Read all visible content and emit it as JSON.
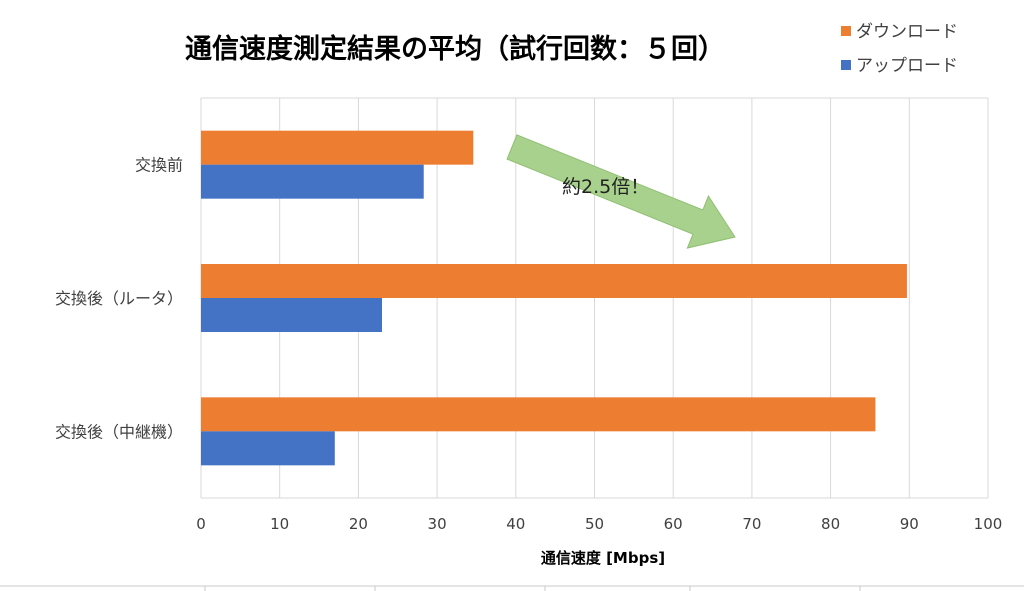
{
  "chart_data": {
    "type": "bar",
    "orientation": "horizontal",
    "title": "通信速度測定結果の平均（試行回数：５回）",
    "xlabel": "通信速度 [Mbps]",
    "ylabel": "",
    "xlim": [
      0,
      100
    ],
    "xticks": [
      0,
      10,
      20,
      30,
      40,
      50,
      60,
      70,
      80,
      90,
      100
    ],
    "grid": true,
    "legend_position": "top-right",
    "categories": [
      "交換前",
      "交換後（ルータ）",
      "交換後（中継機）"
    ],
    "series": [
      {
        "name": "ダウンロード",
        "color": "#ED7D31",
        "values": [
          34.6,
          89.7,
          85.7
        ]
      },
      {
        "name": "アップロード",
        "color": "#4472C4",
        "values": [
          28.3,
          23.0,
          17.0
        ]
      }
    ],
    "annotation": {
      "text": "約2.5倍！",
      "arrow_color": "#A9D18E",
      "arrow_border": "#8FBF71"
    }
  }
}
